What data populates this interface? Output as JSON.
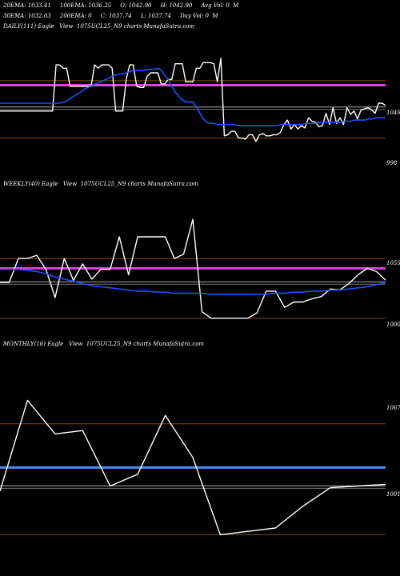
{
  "header": {
    "line1": "20EMA: 1033.41     100EMA: 1036.25     O: 1042.90     H: 1042.90     Avg Vol: 0  M",
    "line2": "30EMA: 1032.03     200EMA: 0     C: 1037.74     L: 1037.74     Day Vol: 0  M"
  },
  "colors": {
    "price": "#ffffff",
    "ema_blue": "#1e50ff",
    "magenta": "#e040e0",
    "brown": "#8b4513",
    "grey": "#aaaaaa"
  },
  "chart_data": [
    {
      "type": "line",
      "label": "DAILY(111) Eagle   View  1075UCL25_N9 charts MunafaSutra.com",
      "ylim": [
        970,
        1078
      ],
      "ref_labels": [
        {
          "text": "1049",
          "value": 1049
        },
        {
          "text": "998",
          "value": 998
        }
      ],
      "ref_lines": {
        "brown": [
          1049,
          998
        ],
        "magenta": 1045
      },
      "series": [
        {
          "name": "price",
          "values": [
            1022,
            1022,
            1022,
            1022,
            1022,
            1022,
            1022,
            1022,
            1022,
            1022,
            1022,
            1022,
            1022,
            1022,
            1022,
            1022,
            1063,
            1063,
            1060,
            1060,
            1044,
            1044,
            1044,
            1044,
            1044,
            1044,
            1044,
            1063,
            1060,
            1063,
            1063,
            1063,
            1060,
            1022,
            1022,
            1022,
            1050,
            1063,
            1063,
            1044,
            1043,
            1043,
            1053,
            1056,
            1056,
            1056,
            1046,
            1046,
            1050,
            1050,
            1064,
            1064,
            1064,
            1048,
            1048,
            1048,
            1060,
            1060,
            1065,
            1065,
            1065,
            1064,
            1048,
            1069,
            1000,
            1001,
            1004,
            1004,
            998,
            998,
            997,
            1001,
            1001,
            995,
            1001,
            1002,
            1000,
            1000,
            1001,
            1001,
            1003,
            1010,
            1014,
            1006,
            1010,
            1006,
            1009,
            1007,
            1016,
            1013,
            1012,
            1008,
            1009,
            1020,
            1010,
            1025,
            1011,
            1016,
            1010,
            1025,
            1019,
            1022,
            1015,
            1023,
            1024,
            1025,
            1023,
            1020,
            1029,
            1029,
            1027
          ]
        },
        {
          "name": "ema_blue",
          "values": [
            1029,
            1029,
            1029,
            1029,
            1029,
            1029,
            1029,
            1029,
            1029,
            1029,
            1029,
            1029,
            1029,
            1029,
            1029,
            1029,
            1029,
            1029,
            1030,
            1031,
            1033,
            1035,
            1037,
            1039,
            1041,
            1043,
            1044,
            1046,
            1047,
            1048,
            1050,
            1051,
            1053,
            1054,
            1055,
            1055,
            1056,
            1057,
            1058,
            1058,
            1058,
            1058,
            1059,
            1059,
            1059,
            1060,
            1058,
            1054,
            1050,
            1044,
            1039,
            1035,
            1032,
            1030,
            1030,
            1030,
            1026,
            1020,
            1015,
            1012,
            1011,
            1011,
            1010,
            1010,
            1010,
            1010,
            1010,
            1010,
            1009,
            1009,
            1009,
            1009,
            1009,
            1009,
            1009,
            1009,
            1009,
            1009,
            1009,
            1009,
            1010,
            1010,
            1010,
            1010,
            1010,
            1010,
            1010,
            1011,
            1011,
            1011,
            1011,
            1012,
            1012,
            1012,
            1012,
            1012,
            1012,
            1012,
            1013,
            1013,
            1013,
            1014,
            1014,
            1014,
            1014,
            1015,
            1015,
            1016,
            1016,
            1016,
            1016
          ]
        }
      ]
    },
    {
      "type": "line",
      "label": "WEEKLY(40) Eagle   View  1075UCL25_N9 charts MunafaSutra.com",
      "ylim": [
        980,
        1100
      ],
      "ref_labels": [
        {
          "text": "1055",
          "value": 1055
        },
        {
          "text": "1000",
          "value": 1000
        }
      ],
      "ref_lines": {
        "brown": [
          1055,
          1000
        ],
        "magenta": 1046
      },
      "series": [
        {
          "name": "price",
          "values": [
            1033,
            1033,
            1055,
            1055,
            1058,
            1045,
            1019,
            1055,
            1035,
            1050,
            1036,
            1045,
            1045,
            1075,
            1040,
            1075,
            1075,
            1075,
            1075,
            1055,
            1059,
            1091,
            1006,
            1000,
            1000,
            1000,
            1000,
            1000,
            1005,
            1025,
            1025,
            1010,
            1015,
            1015,
            1018,
            1020,
            1027,
            1026,
            1032,
            1040,
            1046,
            1043,
            1035
          ]
        },
        {
          "name": "ema_blue",
          "values": [
            1045,
            1045,
            1045,
            1044,
            1043,
            1041,
            1038,
            1036,
            1034,
            1032,
            1030,
            1029,
            1028,
            1027,
            1026,
            1025,
            1025,
            1024,
            1024,
            1023,
            1023,
            1023,
            1023,
            1022,
            1022,
            1022,
            1022,
            1022,
            1022,
            1022,
            1023,
            1023,
            1024,
            1024,
            1025,
            1025,
            1026,
            1026,
            1027,
            1028,
            1029,
            1031,
            1033
          ]
        }
      ]
    },
    {
      "type": "line",
      "label": "MONTHLY(16) Eagle   View  1075UCL25_N9 charts MunafaSutra.com",
      "ylim": [
        995,
        1095
      ],
      "ref_labels": [
        {
          "text": "1067",
          "value": 1067
        },
        {
          "text": "1001",
          "value": 1001
        }
      ],
      "ref_lines": {
        "brown": [
          1067,
          1001
        ],
        "blue": 1041
      },
      "series": [
        {
          "name": "price",
          "values": [
            1027,
            1081,
            1061,
            1063,
            1030,
            1037,
            1072,
            1047,
            1001,
            1003,
            1005,
            1018,
            1029,
            1030,
            1031
          ]
        }
      ]
    }
  ]
}
